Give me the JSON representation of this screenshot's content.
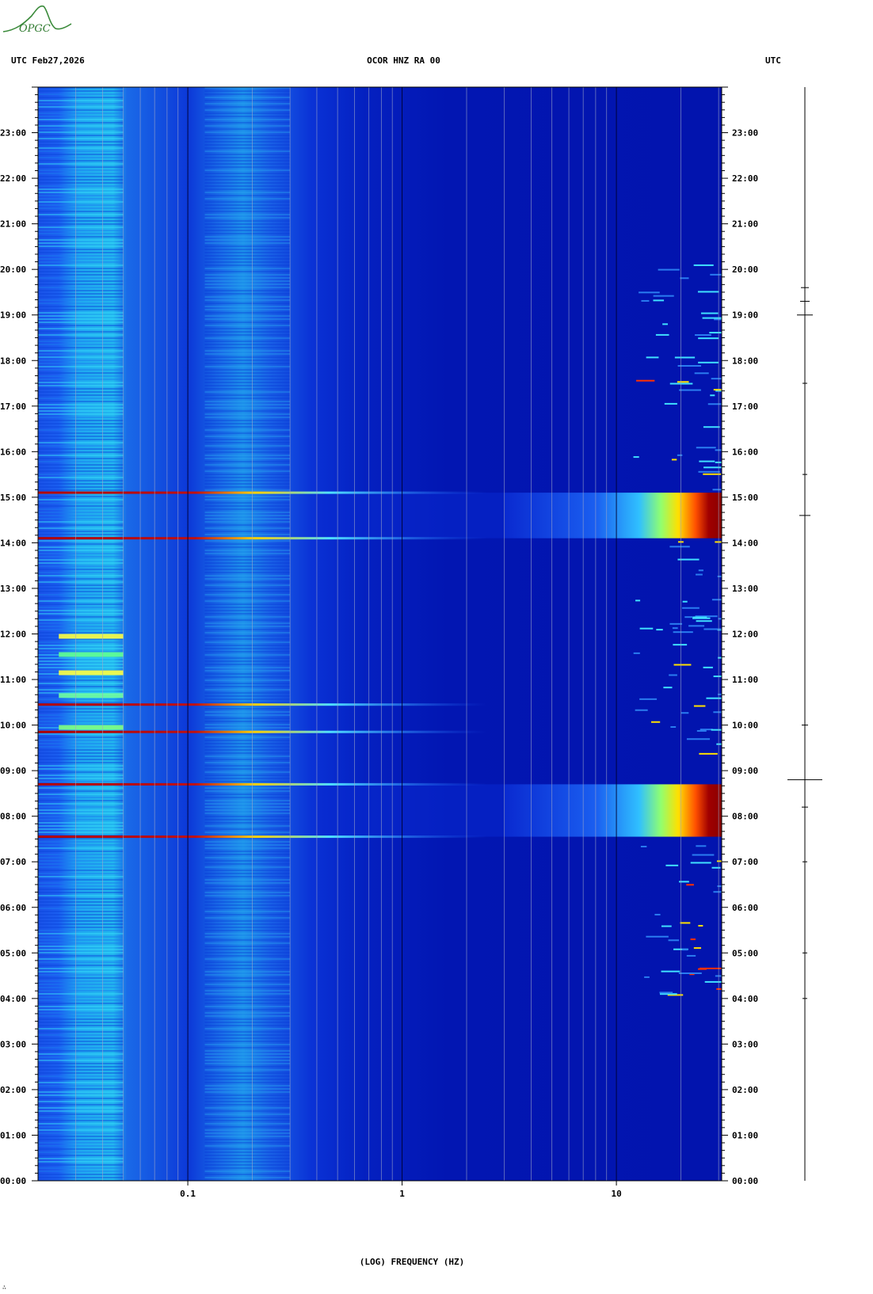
{
  "logo": {
    "text": "OPGC",
    "icon": "opgc-logo-icon",
    "color": "#3a8a3a"
  },
  "header": {
    "left": "UTC  Feb27,2026",
    "center": "OCOR HNZ RA 00",
    "right": "UTC"
  },
  "footer_mark": "∴",
  "chart_data": {
    "type": "heatmap",
    "title": "OCOR HNZ RA 00",
    "date": "Feb27,2026",
    "xlabel": "(LOG) FREQUENCY (HZ)",
    "ylabel": "UTC",
    "x_scale": "log",
    "x_range": [
      0.02,
      31
    ],
    "x_ticks": [
      {
        "value": 0.1,
        "label": "0.1"
      },
      {
        "value": 1,
        "label": "1"
      },
      {
        "value": 10,
        "label": "10"
      }
    ],
    "y_range_hours": [
      0,
      24
    ],
    "y_ticks": [
      {
        "hour": 0,
        "label": "00:00"
      },
      {
        "hour": 1,
        "label": "01:00"
      },
      {
        "hour": 2,
        "label": "02:00"
      },
      {
        "hour": 3,
        "label": "03:00"
      },
      {
        "hour": 4,
        "label": "04:00"
      },
      {
        "hour": 5,
        "label": "05:00"
      },
      {
        "hour": 6,
        "label": "06:00"
      },
      {
        "hour": 7,
        "label": "07:00"
      },
      {
        "hour": 8,
        "label": "08:00"
      },
      {
        "hour": 9,
        "label": "09:00"
      },
      {
        "hour": 10,
        "label": "10:00"
      },
      {
        "hour": 11,
        "label": "11:00"
      },
      {
        "hour": 12,
        "label": "12:00"
      },
      {
        "hour": 13,
        "label": "13:00"
      },
      {
        "hour": 14,
        "label": "14:00"
      },
      {
        "hour": 15,
        "label": "15:00"
      },
      {
        "hour": 16,
        "label": "16:00"
      },
      {
        "hour": 17,
        "label": "17:00"
      },
      {
        "hour": 18,
        "label": "18:00"
      },
      {
        "hour": 19,
        "label": "19:00"
      },
      {
        "hour": 20,
        "label": "20:00"
      },
      {
        "hour": 21,
        "label": "21:00"
      },
      {
        "hour": 22,
        "label": "22:00"
      },
      {
        "hour": 23,
        "label": "23:00"
      }
    ],
    "colormap": [
      "#00008b",
      "#0000ff",
      "#0080ff",
      "#00ffff",
      "#80ff80",
      "#ffff00",
      "#ff8000",
      "#ff0000",
      "#8b0000"
    ],
    "gridlines": true,
    "bursts": [
      {
        "start_hour": 7.55,
        "end_hour": 8.7,
        "min_freq_hz": 3,
        "peak_from_hz": 12
      },
      {
        "start_hour": 14.1,
        "end_hour": 15.1,
        "min_freq_hz": 3,
        "peak_from_hz": 12
      }
    ],
    "transients_hours": [
      7.55,
      8.7,
      9.85,
      10.45,
      14.1,
      15.1
    ],
    "high_freq_events": {
      "min_freq_hz": 12,
      "hour_range": [
        4.0,
        20.3
      ]
    },
    "activity_trace_label": "seismic trace"
  }
}
